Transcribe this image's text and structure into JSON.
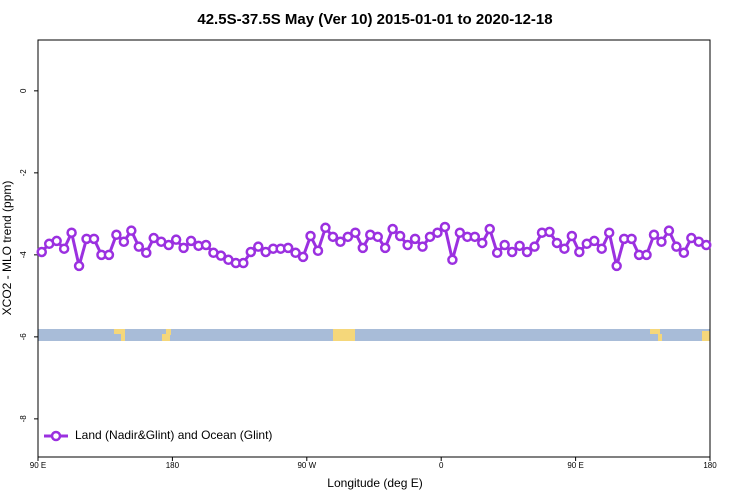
{
  "chart_data": {
    "type": "line",
    "title": "42.5S-37.5S May (Ver 10)   2015-01-01 to 2020-12-18",
    "x_label": "Longitude (deg E)",
    "y_label": "XCO2 - MLO trend (ppm)",
    "xlim": [
      90,
      540
    ],
    "xticks": [
      {
        "value": 90,
        "label": "90 E"
      },
      {
        "value": 180,
        "label": "180"
      },
      {
        "value": 270,
        "label": "90 W"
      },
      {
        "value": 360,
        "label": "0"
      },
      {
        "value": 450,
        "label": "90 E"
      },
      {
        "value": 540,
        "label": "180"
      }
    ],
    "ylim": [
      -8.93,
      1.24
    ],
    "yticks": [
      0,
      -2,
      -4,
      -6,
      -8
    ],
    "legend": "bottom-left",
    "x": [
      92.5,
      97.5,
      102.5,
      107.5,
      112.5,
      117.5,
      122.5,
      127.5,
      132.5,
      137.5,
      142.5,
      147.5,
      152.5,
      157.5,
      162.5,
      167.5,
      172.5,
      177.5,
      182.5,
      187.5,
      192.5,
      197.5,
      202.5,
      207.5,
      212.5,
      217.5,
      222.5,
      227.5,
      232.5,
      237.5,
      242.5,
      247.5,
      252.5,
      257.5,
      262.5,
      267.5,
      272.5,
      277.5,
      282.5,
      287.5,
      292.5,
      297.5,
      302.5,
      307.5,
      312.5,
      317.5,
      322.5,
      327.5,
      332.5,
      337.5,
      342.5,
      347.5,
      352.5,
      357.5,
      362.5,
      367.5,
      372.5,
      377.5,
      382.5,
      387.5,
      392.5,
      397.5,
      402.5,
      407.5,
      412.5,
      417.5,
      422.5,
      427.5,
      432.5,
      437.5,
      442.5,
      447.5,
      452.5,
      457.5,
      462.5,
      467.5,
      472.5,
      477.5,
      482.5,
      487.5,
      492.5,
      497.5,
      502.5,
      507.5,
      512.5,
      517.5,
      522.5,
      527.5,
      532.5,
      537.5
    ],
    "series": [
      {
        "name": "Land (Nadir&Glint) and Ocean (Glint)",
        "color": "#9b30e0",
        "values": [
          -3.93,
          -3.73,
          -3.66,
          -3.85,
          -3.46,
          -4.27,
          -3.61,
          -3.61,
          -4.0,
          -4.0,
          -3.51,
          -3.68,
          -3.41,
          -3.8,
          -3.95,
          -3.59,
          -3.68,
          -3.76,
          -3.63,
          -3.83,
          -3.66,
          -3.78,
          -3.76,
          -3.95,
          -4.02,
          -4.12,
          -4.2,
          -4.2,
          -3.93,
          -3.8,
          -3.93,
          -3.85,
          -3.85,
          -3.83,
          -3.95,
          -4.05,
          -3.54,
          -3.9,
          -3.34,
          -3.56,
          -3.68,
          -3.56,
          -3.46,
          -3.83,
          -3.51,
          -3.56,
          -3.83,
          -3.37,
          -3.54,
          -3.76,
          -3.61,
          -3.8,
          -3.56,
          -3.46,
          -3.32,
          -4.12,
          -3.46,
          -3.56,
          -3.56,
          -3.71,
          -3.37,
          -3.95,
          -3.76,
          -3.93,
          -3.78,
          -3.93,
          -3.8,
          -3.46,
          -3.44,
          -3.71,
          -3.85,
          -3.54,
          -3.93,
          -3.73,
          -3.66,
          -3.85,
          -3.46,
          -4.27,
          -3.61,
          -3.61,
          -4.0,
          -4.0,
          -3.51,
          -3.68,
          -3.41,
          -3.8,
          -3.95,
          -3.59,
          -3.68,
          -3.76
        ]
      }
    ]
  }
}
